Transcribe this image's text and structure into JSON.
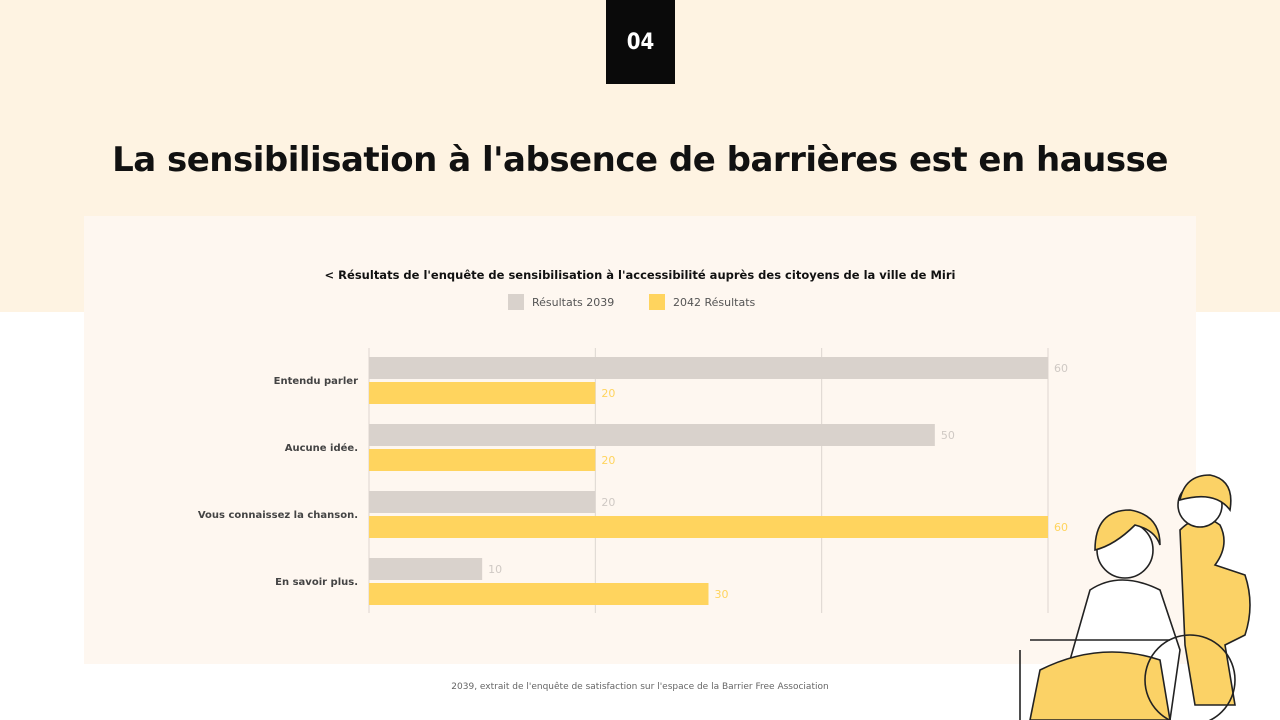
{
  "slide_number": "04",
  "title": "La sensibilisation à l'absence de barrières est en hausse",
  "footer": "2039, extrait de l'enquête de satisfaction sur l'espace de la Barrier Free Association",
  "chart_data": {
    "type": "bar",
    "orientation": "horizontal",
    "title": "< Résultats de l'enquête de sensibilisation à l'accessibilité auprès des citoyens de la ville de Miri",
    "categories": [
      "Entendu parler",
      "Aucune idée.",
      "Vous connaissez la chanson.",
      "En savoir plus."
    ],
    "series": [
      {
        "name": "Résultats 2039",
        "values": [
          60,
          50,
          20,
          10
        ],
        "color": "#d9d2cc",
        "label_color": "#cfc9c4"
      },
      {
        "name": "2042 Résultats",
        "values": [
          20,
          20,
          60,
          30
        ],
        "color": "#ffd45e",
        "label_color": "#ffd45e"
      }
    ],
    "xlim": [
      0,
      60
    ],
    "gridlines": [
      0,
      20,
      40,
      60
    ],
    "grid": true,
    "legend": "top-center",
    "data_labels": true
  }
}
